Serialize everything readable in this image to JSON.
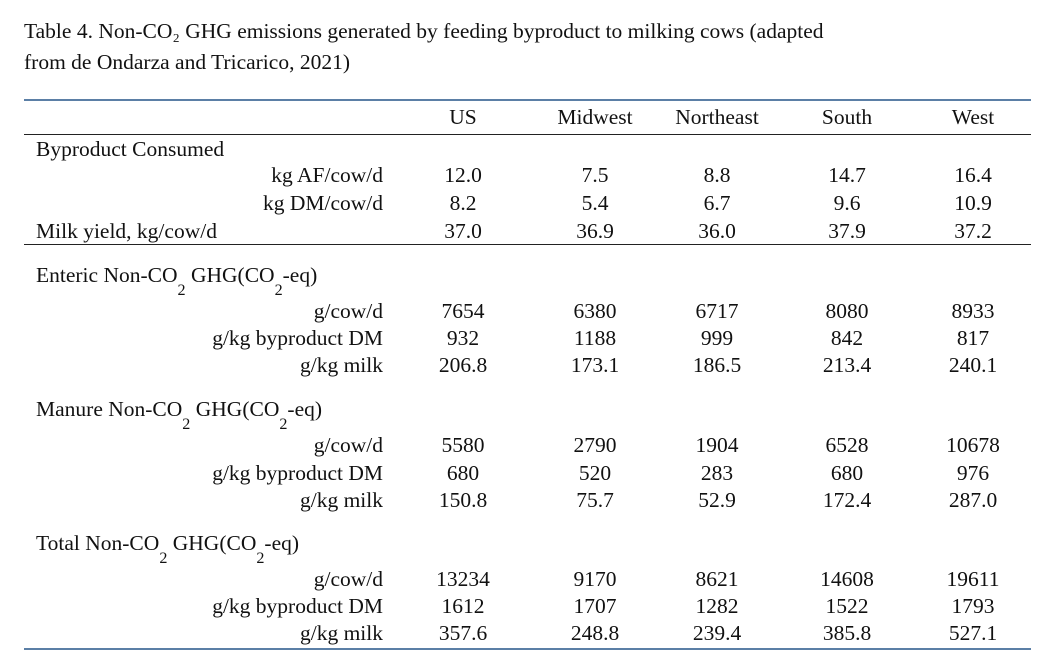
{
  "caption": {
    "line1": "Table 4.  Non-CO₂ GHG emissions generated by feeding byproduct to milking cows (adapted",
    "line2": "from de Ondarza and Tricarico, 2021)"
  },
  "columns": [
    "US",
    "Midwest",
    "Northeast",
    "South",
    "West"
  ],
  "sections": {
    "byproduct": {
      "title": "Byproduct Consumed",
      "rows": [
        {
          "label": "kg AF/cow/d",
          "values": [
            "12.0",
            "7.5",
            "8.8",
            "14.7",
            "16.4"
          ]
        },
        {
          "label": "kg DM/cow/d",
          "values": [
            "8.2",
            "5.4",
            "6.7",
            "9.6",
            "10.9"
          ]
        }
      ],
      "milk": {
        "label": "Milk yield, kg/cow/d",
        "values": [
          "37.0",
          "36.9",
          "36.0",
          "37.9",
          "37.2"
        ]
      }
    },
    "enteric": {
      "title_a": "Enteric Non-CO",
      "title_sub1": "2",
      "title_b": " GHG(CO",
      "title_sub2": "2",
      "title_c": "-eq)",
      "rows": [
        {
          "label": "g/cow/d",
          "values": [
            "7654",
            "6380",
            "6717",
            "8080",
            "8933"
          ]
        },
        {
          "label": "g/kg byproduct DM",
          "values": [
            "932",
            "1188",
            "999",
            "842",
            "817"
          ]
        },
        {
          "label": "g/kg milk",
          "values": [
            "206.8",
            "173.1",
            "186.5",
            "213.4",
            "240.1"
          ]
        }
      ]
    },
    "manure": {
      "title_a": "Manure Non-CO",
      "title_sub1": "2",
      "title_b": " GHG(CO",
      "title_sub2": "2",
      "title_c": "-eq)",
      "rows": [
        {
          "label": "g/cow/d",
          "values": [
            "5580",
            "2790",
            "1904",
            "6528",
            "10678"
          ]
        },
        {
          "label": "g/kg byproduct DM",
          "values": [
            "680",
            "520",
            "283",
            "680",
            "976"
          ]
        },
        {
          "label": "g/kg milk",
          "values": [
            "150.8",
            "75.7",
            "52.9",
            "172.4",
            "287.0"
          ]
        }
      ]
    },
    "total": {
      "title_a": "Total Non-CO",
      "title_sub1": "2",
      "title_b": " GHG(CO",
      "title_sub2": "2",
      "title_c": "-eq)",
      "rows": [
        {
          "label": "g/cow/d",
          "values": [
            "13234",
            "9170",
            "8621",
            "14608",
            "19611"
          ]
        },
        {
          "label": "g/kg byproduct DM",
          "values": [
            "1612",
            "1707",
            "1282",
            "1522",
            "1793"
          ]
        },
        {
          "label": "g/kg milk",
          "values": [
            "357.6",
            "248.8",
            "239.4",
            "385.8",
            "527.1"
          ]
        }
      ]
    }
  }
}
